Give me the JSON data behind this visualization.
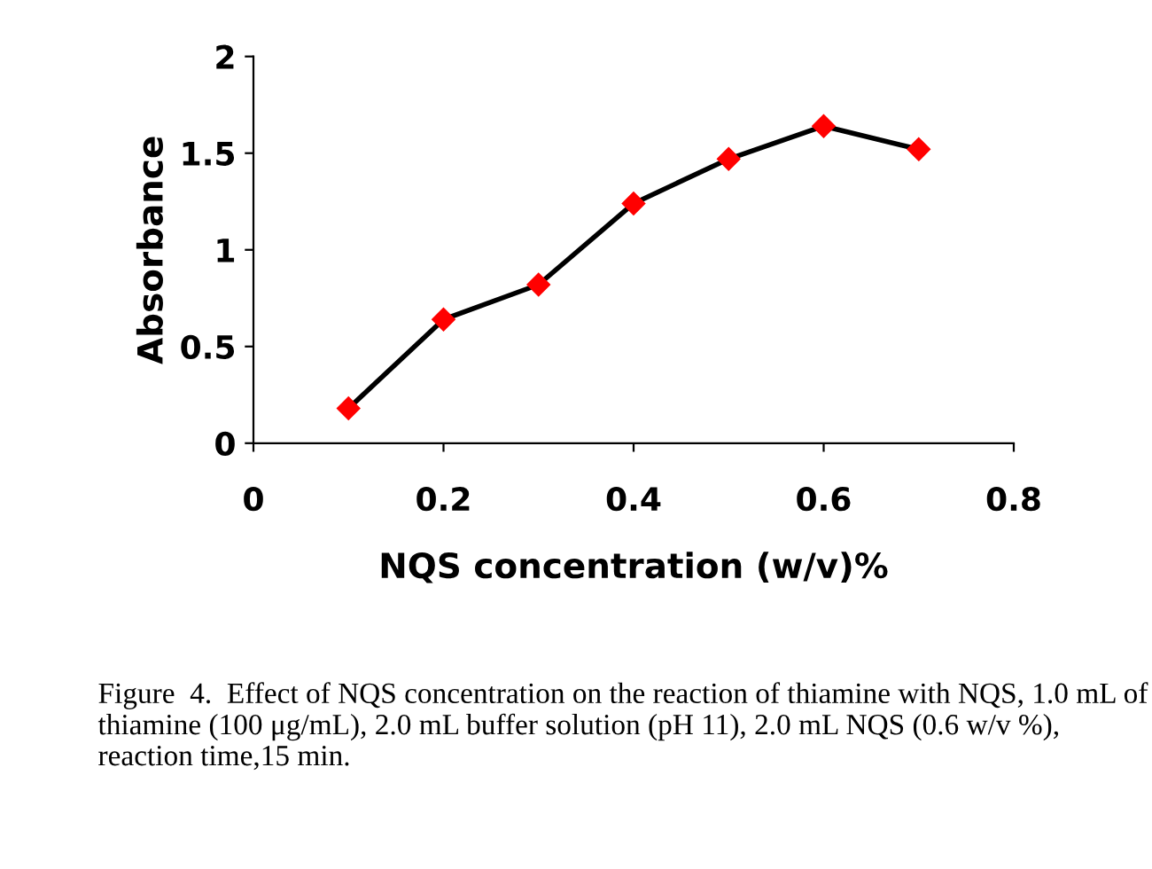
{
  "chart_data": {
    "type": "line",
    "xlabel": "NQS concentration (w/v)%",
    "ylabel": "Absorbance",
    "x": [
      0.1,
      0.2,
      0.3,
      0.4,
      0.5,
      0.6,
      0.7
    ],
    "series": [
      {
        "color": "#ff0000",
        "values": [
          0.18,
          0.64,
          0.82,
          1.24,
          1.47,
          1.64,
          1.52
        ]
      }
    ],
    "xlim": [
      0,
      0.8
    ],
    "xticks": [
      0,
      0.2,
      0.4,
      0.6,
      0.8
    ],
    "ylim": [
      0,
      2
    ],
    "yticks": [
      0,
      0.5,
      1,
      1.5,
      2
    ],
    "marker": "diamond",
    "line_style": "solid",
    "grid": false,
    "legend": false,
    "annotations": [
      "Figure  4.  Effect of NQS concentration on the reaction of thiamine with NQS, 1.0 mL of thiamine (100 μg/mL), 2.0 mL buffer solution (pH 11), 2.0 mL NQS (0.6 w/v %), reaction time,15 min."
    ]
  }
}
